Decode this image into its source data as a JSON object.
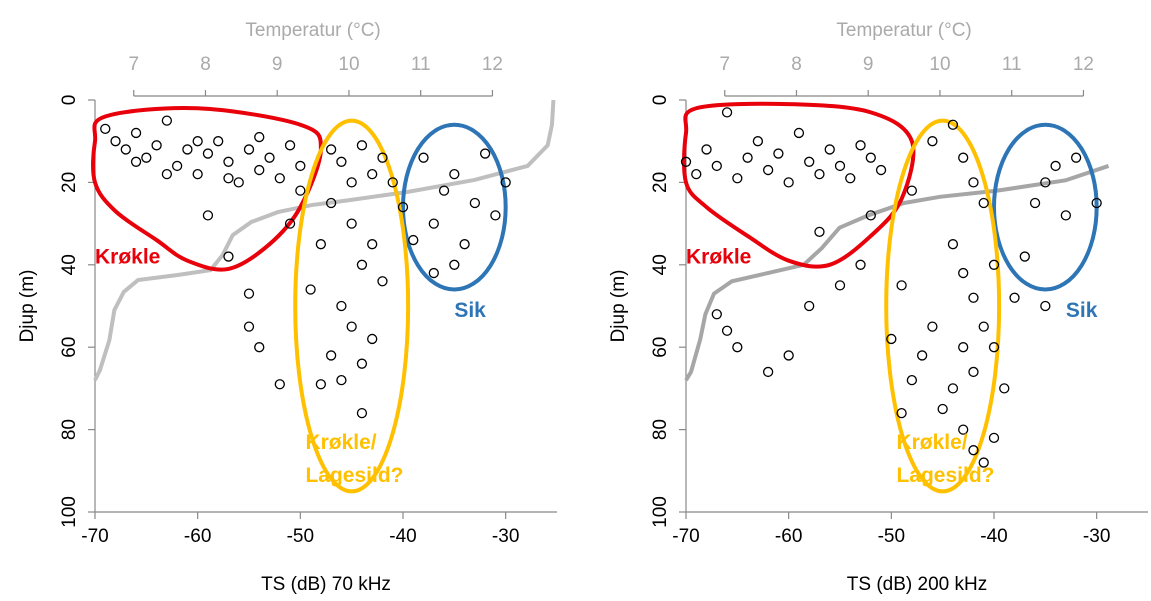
{
  "chart_data": [
    {
      "type": "scatter",
      "xlabel": "TS (dB) 70 kHz",
      "ylabel": "Djup (m)",
      "x2label": "Temperatur (°C)",
      "xlim": [
        -70,
        -25
      ],
      "xticks": [
        -70,
        -60,
        -50,
        -40,
        -30
      ],
      "ylim": [
        0,
        100
      ],
      "yticks": [
        0,
        20,
        40,
        60,
        80,
        100
      ],
      "x2lim": [
        6.46,
        12.9
      ],
      "x2ticks": [
        7,
        8,
        9,
        10,
        11,
        12
      ],
      "marker_color": "#000000",
      "x": [
        -69,
        -68,
        -67,
        -66,
        -65,
        -64,
        -63,
        -62,
        -61,
        -60,
        -59,
        -58,
        -57,
        -56,
        -55,
        -54,
        -53,
        -52,
        -51,
        -50,
        -66,
        -63,
        -60,
        -57,
        -54,
        -59,
        -57,
        -55,
        -55,
        -54,
        -52,
        -49,
        -47,
        -46,
        -45,
        -44,
        -43,
        -42,
        -47,
        -45,
        -43,
        -44,
        -42,
        -46,
        -45,
        -43,
        -47,
        -44,
        -46,
        -48,
        -44,
        -41,
        -40,
        -38,
        -37,
        -36,
        -35,
        -34,
        -33,
        -32,
        -31,
        -30,
        -35,
        -37,
        -39,
        -48,
        -50,
        -51
      ],
      "y": [
        7,
        10,
        12,
        8,
        14,
        11,
        5,
        16,
        12,
        18,
        13,
        10,
        15,
        20,
        12,
        17,
        14,
        19,
        11,
        16,
        15,
        18,
        10,
        19,
        9,
        28,
        38,
        47,
        55,
        60,
        69,
        46,
        12,
        15,
        20,
        11,
        18,
        14,
        25,
        30,
        35,
        40,
        44,
        50,
        55,
        58,
        62,
        64,
        68,
        69,
        76,
        20,
        26,
        14,
        30,
        22,
        18,
        35,
        25,
        13,
        28,
        20,
        40,
        42,
        34,
        35,
        22,
        30
      ],
      "profile": {
        "color": "#bfbfbf",
        "x": [
          12.85,
          12.83,
          12.77,
          12.49,
          11.75,
          10.82,
          10.01,
          9.48,
          9.01,
          8.64,
          8.38,
          8.24,
          8.07,
          7.6,
          7.06,
          6.86,
          6.73,
          6.66,
          6.53,
          6.46
        ],
        "y": [
          0,
          6,
          11,
          16,
          19.4,
          22.3,
          24.3,
          25.5,
          27.2,
          29.6,
          32.8,
          37.6,
          41.3,
          42.5,
          43.7,
          46.6,
          51,
          58.3,
          65.5,
          68
        ]
      },
      "annotations": [
        {
          "text": "Krøkle",
          "color": "#e8000b"
        },
        {
          "text": "Sik",
          "color": "#2e75b6"
        },
        {
          "text": "Krøkle/",
          "color": "#ffc000"
        },
        {
          "text": "Lagesild?",
          "color": "#ffc000"
        }
      ]
    },
    {
      "type": "scatter",
      "xlabel": "TS (dB) 200 kHz",
      "ylabel": "Djup (m)",
      "x2label": "Temperatur (°C)",
      "xlim": [
        -70,
        -25
      ],
      "xticks": [
        -70,
        -60,
        -50,
        -40,
        -30
      ],
      "ylim": [
        0,
        100
      ],
      "yticks": [
        0,
        20,
        40,
        60,
        80,
        100
      ],
      "x2lim": [
        6.46,
        12.9
      ],
      "x2ticks": [
        7,
        8,
        9,
        10,
        11,
        12
      ],
      "marker_color": "#000000",
      "x": [
        -70,
        -69,
        -68,
        -67,
        -66,
        -65,
        -64,
        -63,
        -62,
        -61,
        -60,
        -59,
        -58,
        -57,
        -56,
        -55,
        -54,
        -53,
        -52,
        -51,
        -67,
        -66,
        -65,
        -62,
        -60,
        -58,
        -55,
        -53,
        -57,
        -52,
        -48,
        -46,
        -44,
        -43,
        -42,
        -41,
        -44,
        -43,
        -42,
        -41,
        -43,
        -42,
        -44,
        -45,
        -43,
        -42,
        -41,
        -46,
        -47,
        -48,
        -49,
        -40,
        -40,
        -39,
        -40,
        -38,
        -36,
        -35,
        -34,
        -33,
        -32,
        -30,
        -37,
        -35,
        -50,
        -49
      ],
      "y": [
        15,
        18,
        12,
        16,
        3,
        19,
        14,
        10,
        17,
        13,
        20,
        8,
        15,
        18,
        12,
        16,
        19,
        11,
        14,
        17,
        52,
        56,
        60,
        66,
        62,
        50,
        45,
        40,
        32,
        28,
        22,
        10,
        6,
        14,
        20,
        25,
        35,
        42,
        48,
        55,
        60,
        66,
        70,
        75,
        80,
        85,
        88,
        55,
        62,
        68,
        76,
        40,
        60,
        70,
        82,
        48,
        25,
        20,
        16,
        28,
        14,
        25,
        38,
        50,
        58,
        45
      ],
      "profile": {
        "color": "#a6a6a6",
        "x": [
          12.35,
          11.75,
          10.8,
          10.0,
          9.5,
          9.0,
          8.6,
          8.35,
          8.1,
          7.6,
          7.1,
          6.85,
          6.73,
          6.66,
          6.53,
          6.46
        ],
        "y": [
          16,
          19.5,
          22,
          23.5,
          25,
          28,
          31,
          36,
          40,
          42,
          44,
          47,
          52,
          58,
          66,
          68
        ]
      },
      "annotations": [
        {
          "text": "Krøkle",
          "color": "#e8000b"
        },
        {
          "text": "Sik",
          "color": "#2e75b6"
        },
        {
          "text": "Krøkle/",
          "color": "#ffc000"
        },
        {
          "text": "Lagesild?",
          "color": "#ffc000"
        }
      ]
    }
  ]
}
